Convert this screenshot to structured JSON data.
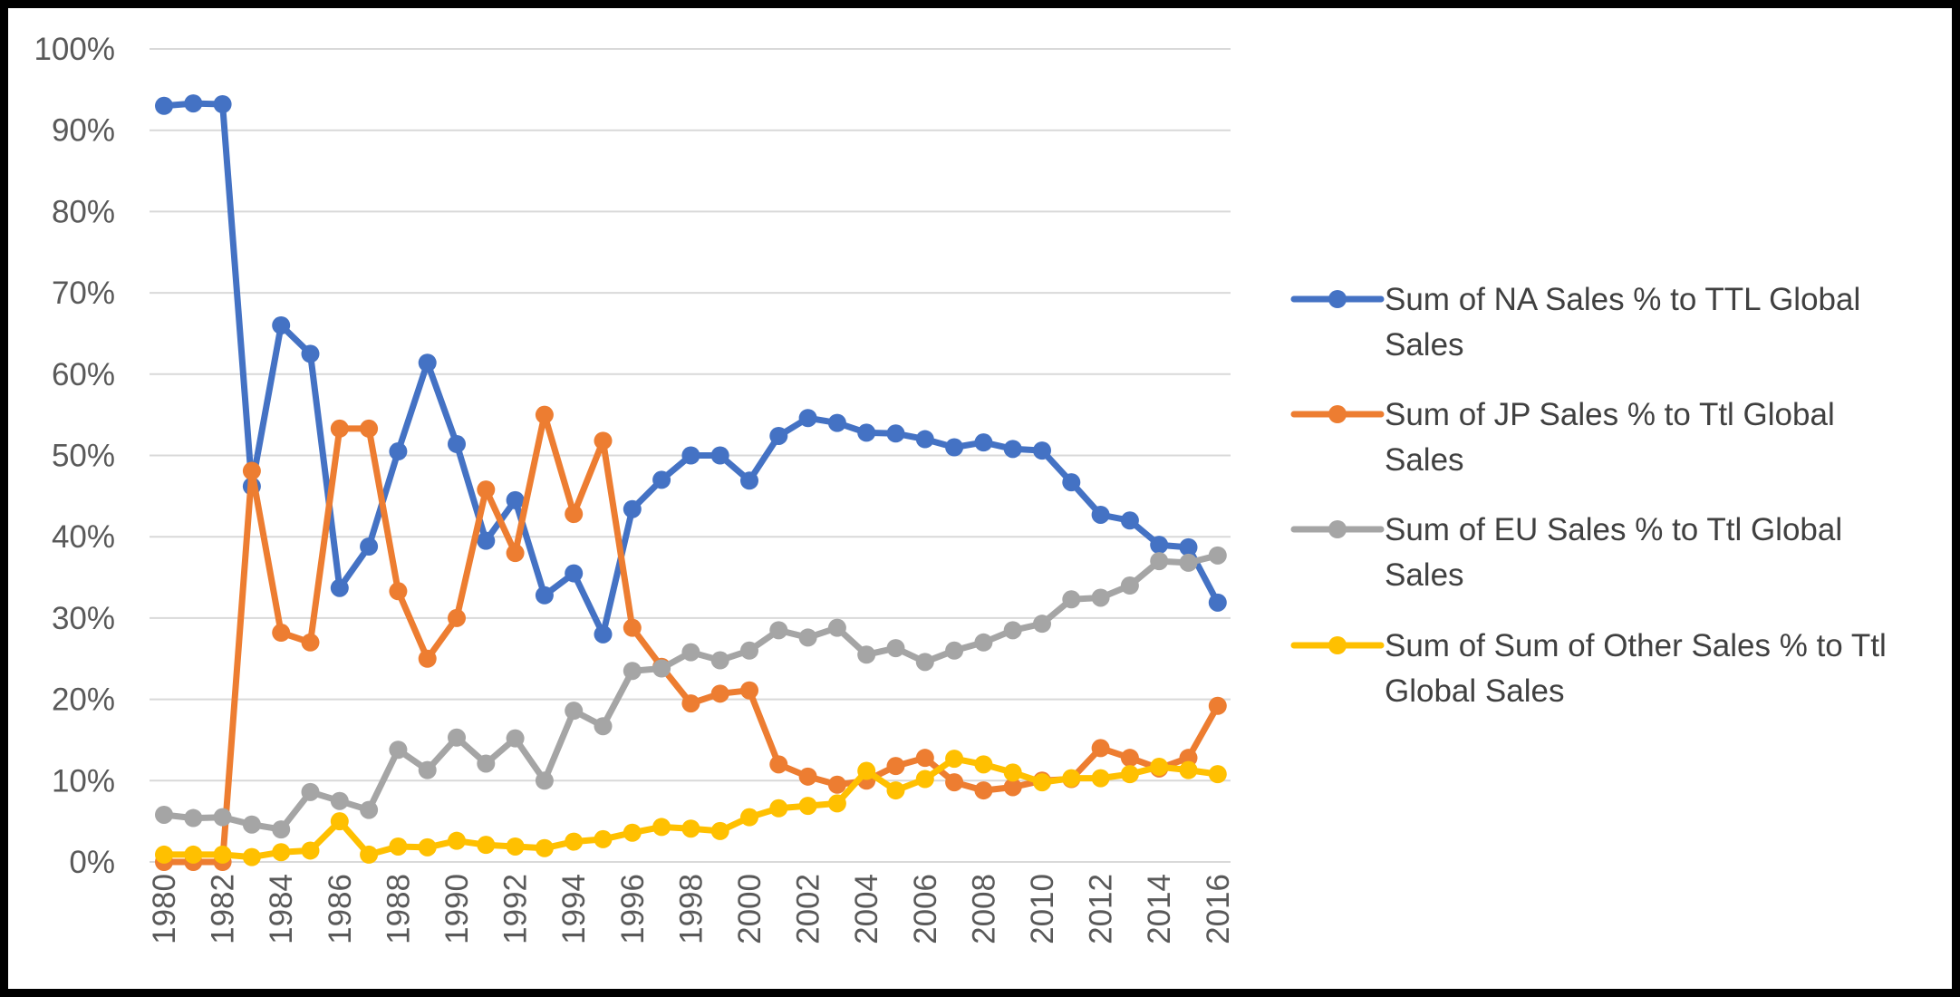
{
  "chart_data": {
    "type": "line",
    "title": "",
    "xlabel": "",
    "ylabel": "",
    "ylim": [
      0,
      1
    ],
    "y_ticks": [
      "0%",
      "10%",
      "20%",
      "30%",
      "40%",
      "50%",
      "60%",
      "70%",
      "80%",
      "90%",
      "100%"
    ],
    "x": [
      1980,
      1981,
      1982,
      1983,
      1984,
      1985,
      1986,
      1987,
      1988,
      1989,
      1990,
      1991,
      1992,
      1993,
      1994,
      1995,
      1996,
      1997,
      1998,
      1999,
      2000,
      2001,
      2002,
      2003,
      2004,
      2005,
      2006,
      2007,
      2008,
      2009,
      2010,
      2011,
      2012,
      2013,
      2014,
      2015,
      2016
    ],
    "x_tick_labels": [
      "1980",
      "1982",
      "1984",
      "1986",
      "1988",
      "1990",
      "1992",
      "1994",
      "1996",
      "1998",
      "2000",
      "2002",
      "2004",
      "2006",
      "2008",
      "2010",
      "2012",
      "2014",
      "2016"
    ],
    "grid": true,
    "legend_position": "right",
    "series": [
      {
        "name": "Sum of NA Sales % to TTL Global Sales",
        "legend_lines": [
          "Sum of NA Sales % to TTL Global",
          "Sales"
        ],
        "color": "#4472C4",
        "values": [
          0.93,
          0.933,
          0.932,
          0.462,
          0.66,
          0.625,
          0.337,
          0.388,
          0.505,
          0.614,
          0.514,
          0.395,
          0.445,
          0.328,
          0.355,
          0.28,
          0.434,
          0.47,
          0.5,
          0.5,
          0.469,
          0.524,
          0.546,
          0.54,
          0.528,
          0.527,
          0.52,
          0.51,
          0.516,
          0.508,
          0.506,
          0.467,
          0.427,
          0.42,
          0.39,
          0.387,
          0.319
        ]
      },
      {
        "name": "Sum of JP Sales % to Ttl Global Sales",
        "legend_lines": [
          "Sum of JP Sales % to Ttl Global",
          "Sales"
        ],
        "color": "#ED7D31",
        "values": [
          0.0,
          0.0,
          0.0,
          0.481,
          0.282,
          0.27,
          0.533,
          0.533,
          0.333,
          0.25,
          0.3,
          0.458,
          0.38,
          0.55,
          0.428,
          0.518,
          0.288,
          0.24,
          0.195,
          0.207,
          0.211,
          0.12,
          0.105,
          0.095,
          0.1,
          0.118,
          0.128,
          0.098,
          0.088,
          0.092,
          0.1,
          0.102,
          0.14,
          0.128,
          0.115,
          0.128,
          0.192
        ]
      },
      {
        "name": "Sum of EU Sales  % to Ttl Global Sales",
        "legend_lines": [
          "Sum of EU Sales  % to Ttl Global",
          "Sales"
        ],
        "color": "#A5A5A5",
        "values": [
          0.058,
          0.054,
          0.055,
          0.046,
          0.04,
          0.086,
          0.075,
          0.064,
          0.138,
          0.113,
          0.153,
          0.121,
          0.152,
          0.1,
          0.186,
          0.167,
          0.235,
          0.238,
          0.258,
          0.248,
          0.26,
          0.285,
          0.276,
          0.288,
          0.255,
          0.263,
          0.246,
          0.26,
          0.27,
          0.285,
          0.293,
          0.323,
          0.325,
          0.34,
          0.37,
          0.368,
          0.377
        ]
      },
      {
        "name": "Sum of Sum of Other Sales % to Ttl Global Sales",
        "legend_lines": [
          "Sum of Sum of Other Sales % to Ttl",
          "Global Sales"
        ],
        "color": "#FFC000",
        "values": [
          0.009,
          0.009,
          0.009,
          0.006,
          0.012,
          0.014,
          0.05,
          0.009,
          0.019,
          0.018,
          0.026,
          0.021,
          0.019,
          0.017,
          0.025,
          0.028,
          0.036,
          0.043,
          0.041,
          0.038,
          0.055,
          0.066,
          0.069,
          0.072,
          0.112,
          0.088,
          0.102,
          0.127,
          0.12,
          0.11,
          0.098,
          0.103,
          0.103,
          0.108,
          0.117,
          0.113,
          0.108
        ]
      }
    ]
  }
}
